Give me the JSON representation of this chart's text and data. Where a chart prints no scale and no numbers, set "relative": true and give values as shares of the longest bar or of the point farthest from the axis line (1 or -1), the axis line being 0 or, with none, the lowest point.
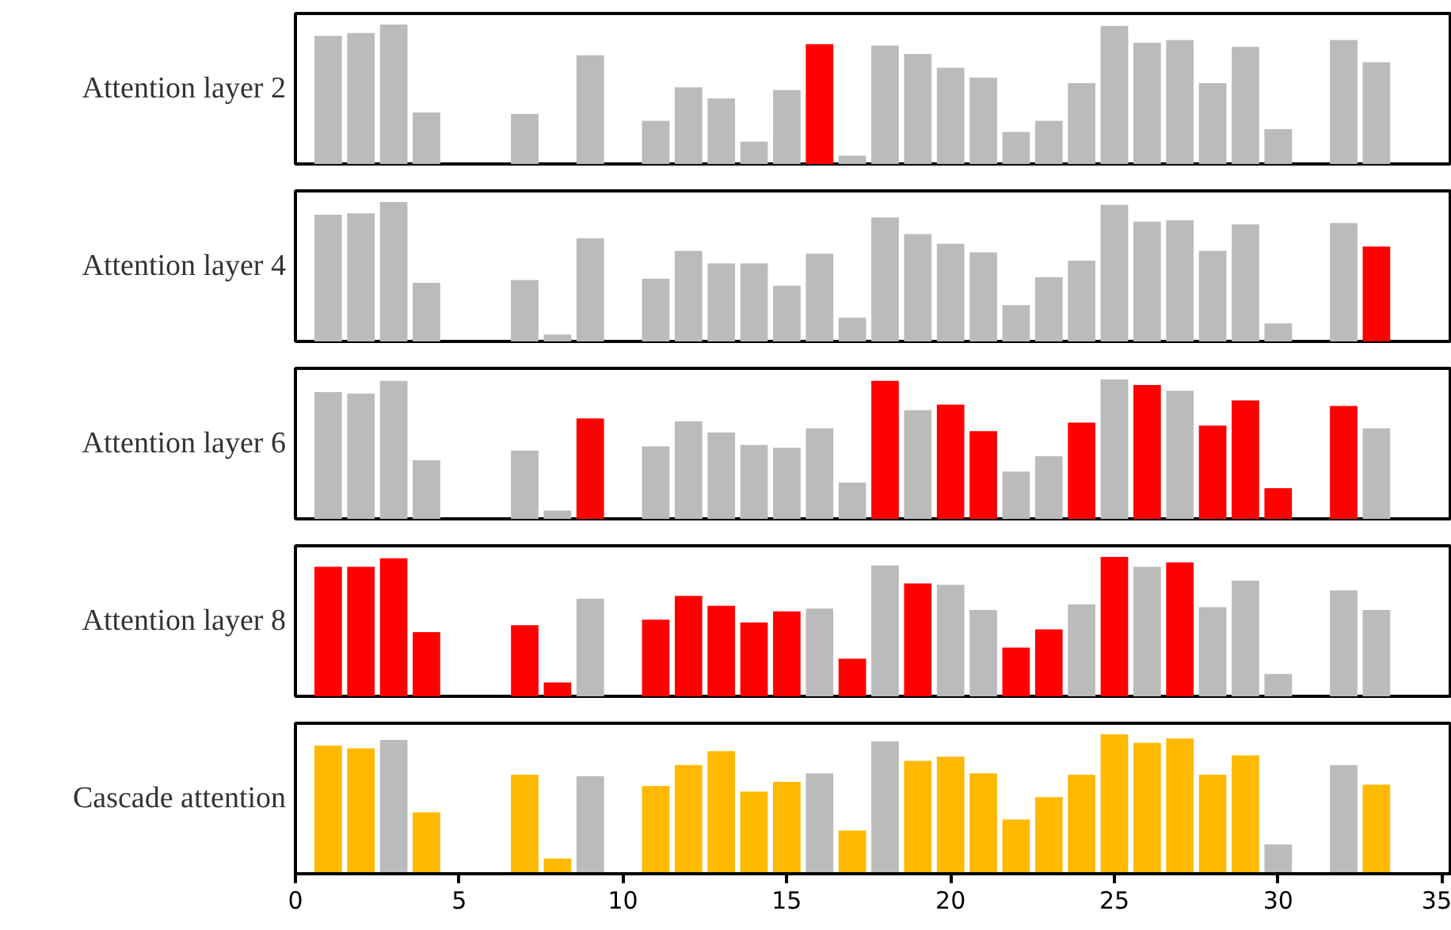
{
  "chart_data": [
    {
      "type": "bar",
      "ylabel": "Attention layer 2",
      "relative": true,
      "tick_labels": false,
      "xlim": [
        0,
        35.3
      ],
      "x": [
        1,
        2,
        3,
        4,
        7,
        9,
        11,
        12,
        13,
        14,
        15,
        16,
        17,
        18,
        19,
        20,
        21,
        22,
        23,
        24,
        25,
        26,
        27,
        28,
        29,
        30,
        32,
        33
      ],
      "values": [
        0.92,
        0.94,
        1,
        0.37,
        0.36,
        0.78,
        0.31,
        0.55,
        0.47,
        0.16,
        0.53,
        0.86,
        0.06,
        0.85,
        0.79,
        0.69,
        0.62,
        0.23,
        0.31,
        0.58,
        0.99,
        0.87,
        0.89,
        0.58,
        0.84,
        0.25,
        0.89,
        0.73
      ],
      "colors": [
        "#bbbbbb",
        "#bbbbbb",
        "#bbbbbb",
        "#bbbbbb",
        "#bbbbbb",
        "#bbbbbb",
        "#bbbbbb",
        "#bbbbbb",
        "#bbbbbb",
        "#bbbbbb",
        "#bbbbbb",
        "#ff0000",
        "#bbbbbb",
        "#bbbbbb",
        "#bbbbbb",
        "#bbbbbb",
        "#bbbbbb",
        "#bbbbbb",
        "#bbbbbb",
        "#bbbbbb",
        "#bbbbbb",
        "#bbbbbb",
        "#bbbbbb",
        "#bbbbbb",
        "#bbbbbb",
        "#bbbbbb",
        "#bbbbbb",
        "#bbbbbb"
      ]
    },
    {
      "type": "bar",
      "ylabel": "Attention layer 4",
      "relative": true,
      "tick_labels": false,
      "xlim": [
        0,
        35.3
      ],
      "x": [
        1,
        2,
        3,
        4,
        7,
        8,
        9,
        11,
        12,
        13,
        14,
        15,
        16,
        17,
        18,
        19,
        20,
        21,
        22,
        23,
        24,
        25,
        26,
        27,
        28,
        29,
        30,
        32,
        33
      ],
      "values": [
        0.91,
        0.92,
        1,
        0.42,
        0.44,
        0.05,
        0.74,
        0.45,
        0.65,
        0.56,
        0.56,
        0.4,
        0.63,
        0.17,
        0.89,
        0.77,
        0.7,
        0.64,
        0.26,
        0.46,
        0.58,
        0.98,
        0.86,
        0.87,
        0.65,
        0.84,
        0.13,
        0.85,
        0.68
      ],
      "colors": [
        "#bbbbbb",
        "#bbbbbb",
        "#bbbbbb",
        "#bbbbbb",
        "#bbbbbb",
        "#bbbbbb",
        "#bbbbbb",
        "#bbbbbb",
        "#bbbbbb",
        "#bbbbbb",
        "#bbbbbb",
        "#bbbbbb",
        "#bbbbbb",
        "#bbbbbb",
        "#bbbbbb",
        "#bbbbbb",
        "#bbbbbb",
        "#bbbbbb",
        "#bbbbbb",
        "#bbbbbb",
        "#bbbbbb",
        "#bbbbbb",
        "#bbbbbb",
        "#bbbbbb",
        "#bbbbbb",
        "#bbbbbb",
        "#bbbbbb",
        "#bbbbbb",
        "#ff0000"
      ]
    },
    {
      "type": "bar",
      "ylabel": "Attention layer 6",
      "relative": true,
      "tick_labels": false,
      "xlim": [
        0,
        35.3
      ],
      "x": [
        1,
        2,
        3,
        4,
        7,
        8,
        9,
        11,
        12,
        13,
        14,
        15,
        16,
        17,
        18,
        19,
        20,
        21,
        22,
        23,
        24,
        25,
        26,
        27,
        28,
        29,
        30,
        32,
        33
      ],
      "values": [
        0.91,
        0.9,
        0.99,
        0.42,
        0.49,
        0.06,
        0.72,
        0.52,
        0.7,
        0.62,
        0.53,
        0.51,
        0.65,
        0.26,
        0.99,
        0.78,
        0.82,
        0.63,
        0.34,
        0.45,
        0.69,
        1,
        0.96,
        0.92,
        0.67,
        0.85,
        0.22,
        0.81,
        0.65
      ],
      "colors": [
        "#bbbbbb",
        "#bbbbbb",
        "#bbbbbb",
        "#bbbbbb",
        "#bbbbbb",
        "#bbbbbb",
        "#ff0000",
        "#bbbbbb",
        "#bbbbbb",
        "#bbbbbb",
        "#bbbbbb",
        "#bbbbbb",
        "#bbbbbb",
        "#bbbbbb",
        "#ff0000",
        "#bbbbbb",
        "#ff0000",
        "#ff0000",
        "#bbbbbb",
        "#bbbbbb",
        "#ff0000",
        "#bbbbbb",
        "#ff0000",
        "#bbbbbb",
        "#ff0000",
        "#ff0000",
        "#ff0000",
        "#ff0000",
        "#bbbbbb"
      ]
    },
    {
      "type": "bar",
      "ylabel": "Attention layer 8",
      "relative": true,
      "tick_labels": false,
      "xlim": [
        0,
        35.3
      ],
      "x": [
        1,
        2,
        3,
        4,
        7,
        8,
        9,
        11,
        12,
        13,
        14,
        15,
        16,
        17,
        18,
        19,
        20,
        21,
        22,
        23,
        24,
        25,
        26,
        27,
        28,
        29,
        30,
        32,
        33
      ],
      "values": [
        0.93,
        0.93,
        0.99,
        0.46,
        0.51,
        0.1,
        0.7,
        0.55,
        0.72,
        0.65,
        0.53,
        0.61,
        0.63,
        0.27,
        0.94,
        0.81,
        0.8,
        0.62,
        0.35,
        0.48,
        0.66,
        1,
        0.93,
        0.96,
        0.64,
        0.83,
        0.16,
        0.76,
        0.62
      ],
      "colors": [
        "#ff0000",
        "#ff0000",
        "#ff0000",
        "#ff0000",
        "#ff0000",
        "#ff0000",
        "#bbbbbb",
        "#ff0000",
        "#ff0000",
        "#ff0000",
        "#ff0000",
        "#ff0000",
        "#bbbbbb",
        "#ff0000",
        "#bbbbbb",
        "#ff0000",
        "#bbbbbb",
        "#bbbbbb",
        "#ff0000",
        "#ff0000",
        "#bbbbbb",
        "#ff0000",
        "#bbbbbb",
        "#ff0000",
        "#bbbbbb",
        "#bbbbbb",
        "#bbbbbb",
        "#bbbbbb",
        "#bbbbbb"
      ]
    },
    {
      "type": "bar",
      "ylabel": "Cascade attention",
      "relative": true,
      "tick_labels": "x",
      "xlim": [
        0,
        35.3
      ],
      "xticks": [
        0,
        5,
        10,
        15,
        20,
        25,
        30,
        35
      ],
      "x": [
        1,
        2,
        3,
        4,
        7,
        8,
        9,
        11,
        12,
        13,
        14,
        15,
        16,
        17,
        18,
        19,
        20,
        21,
        22,
        23,
        24,
        25,
        26,
        27,
        28,
        29,
        30,
        32,
        33
      ],
      "values": [
        0.92,
        0.9,
        0.96,
        0.44,
        0.71,
        0.11,
        0.7,
        0.63,
        0.78,
        0.88,
        0.59,
        0.66,
        0.72,
        0.31,
        0.95,
        0.81,
        0.84,
        0.72,
        0.39,
        0.55,
        0.71,
        1,
        0.94,
        0.97,
        0.71,
        0.85,
        0.21,
        0.78,
        0.64
      ],
      "colors": [
        "#ffb900",
        "#ffb900",
        "#bbbbbb",
        "#ffb900",
        "#ffb900",
        "#ffb900",
        "#bbbbbb",
        "#ffb900",
        "#ffb900",
        "#ffb900",
        "#ffb900",
        "#ffb900",
        "#bbbbbb",
        "#ffb900",
        "#bbbbbb",
        "#ffb900",
        "#ffb900",
        "#ffb900",
        "#ffb900",
        "#ffb900",
        "#ffb900",
        "#ffb900",
        "#ffb900",
        "#ffb900",
        "#ffb900",
        "#ffb900",
        "#bbbbbb",
        "#bbbbbb",
        "#ffb900"
      ]
    }
  ]
}
